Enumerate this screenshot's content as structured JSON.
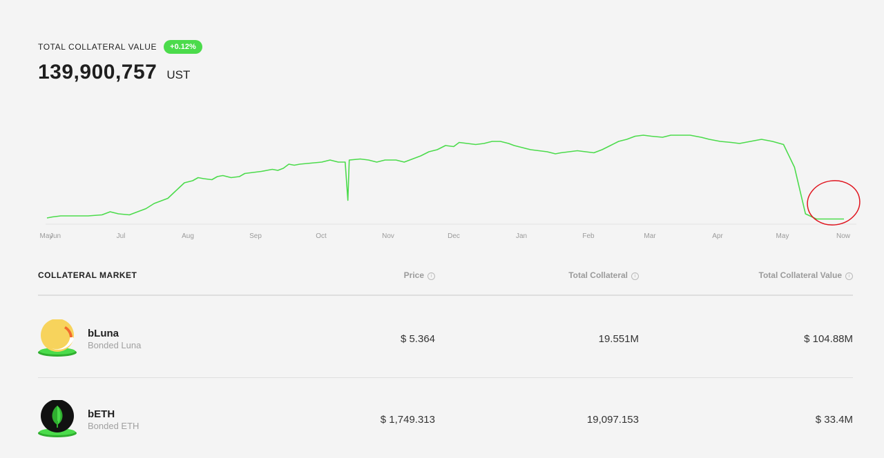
{
  "header": {
    "title": "TOTAL COLLATERAL VALUE",
    "change_badge": "+0.12%",
    "total_value": "139,900,757",
    "unit": "UST"
  },
  "colors": {
    "accent": "#4bdb4b",
    "line": "#4bdb4b",
    "annotation": "#e0141e"
  },
  "chart_data": {
    "type": "line",
    "x_ticks": [
      "May",
      "Jun",
      "Jul",
      "Aug",
      "Sep",
      "Oct",
      "Nov",
      "Dec",
      "Jan",
      "Feb",
      "Mar",
      "Apr",
      "May",
      "Now"
    ],
    "series": [
      {
        "values": [
          [
            0,
            6
          ],
          [
            0.2,
            7
          ],
          [
            0.5,
            8
          ],
          [
            0.8,
            8
          ],
          [
            1,
            8
          ],
          [
            1.5,
            8
          ],
          [
            2,
            9
          ],
          [
            2.3,
            12
          ],
          [
            2.6,
            10
          ],
          [
            3,
            9
          ],
          [
            3.3,
            12
          ],
          [
            3.6,
            15
          ],
          [
            3.9,
            20
          ],
          [
            4.1,
            22
          ],
          [
            4.4,
            25
          ],
          [
            4.6,
            30
          ],
          [
            4.8,
            35
          ],
          [
            5,
            40
          ],
          [
            5.3,
            42
          ],
          [
            5.5,
            45
          ],
          [
            5.7,
            44
          ],
          [
            6,
            43
          ],
          [
            6.2,
            46
          ],
          [
            6.4,
            47
          ],
          [
            6.7,
            45
          ],
          [
            7,
            46
          ],
          [
            7.2,
            49
          ],
          [
            7.5,
            50
          ],
          [
            7.8,
            51
          ],
          [
            8,
            52
          ],
          [
            8.2,
            53
          ],
          [
            8.4,
            52
          ],
          [
            8.6,
            54
          ],
          [
            8.8,
            58
          ],
          [
            9,
            57
          ],
          [
            9.2,
            58
          ],
          [
            9.6,
            59
          ],
          [
            10,
            60
          ],
          [
            10.3,
            62
          ],
          [
            10.6,
            60
          ],
          [
            10.85,
            60
          ],
          [
            10.95,
            23
          ],
          [
            11,
            62
          ],
          [
            11.4,
            63
          ],
          [
            11.7,
            62
          ],
          [
            12,
            60
          ],
          [
            12.3,
            62
          ],
          [
            12.7,
            62
          ],
          [
            13,
            60
          ],
          [
            13.3,
            63
          ],
          [
            13.6,
            66
          ],
          [
            13.9,
            70
          ],
          [
            14.2,
            72
          ],
          [
            14.5,
            76
          ],
          [
            14.8,
            75
          ],
          [
            15,
            79
          ],
          [
            15.3,
            78
          ],
          [
            15.6,
            77
          ],
          [
            15.9,
            78
          ],
          [
            16.2,
            80
          ],
          [
            16.5,
            80
          ],
          [
            16.8,
            78
          ],
          [
            17,
            76
          ],
          [
            17.3,
            74
          ],
          [
            17.6,
            72
          ],
          [
            17.9,
            71
          ],
          [
            18.2,
            70
          ],
          [
            18.5,
            68
          ],
          [
            18.7,
            69
          ],
          [
            19,
            70
          ],
          [
            19.3,
            71
          ],
          [
            19.6,
            70
          ],
          [
            19.9,
            69
          ],
          [
            20.2,
            72
          ],
          [
            20.5,
            76
          ],
          [
            20.8,
            80
          ],
          [
            21.1,
            82
          ],
          [
            21.4,
            85
          ],
          [
            21.7,
            86
          ],
          [
            22,
            85
          ],
          [
            22.4,
            84
          ],
          [
            22.7,
            86
          ],
          [
            23,
            86
          ],
          [
            23.4,
            86
          ],
          [
            23.8,
            84
          ],
          [
            24.1,
            82
          ],
          [
            24.5,
            80
          ],
          [
            24.9,
            79
          ],
          [
            25.2,
            78
          ],
          [
            25.6,
            80
          ],
          [
            26,
            82
          ],
          [
            26.4,
            80
          ],
          [
            26.8,
            77
          ],
          [
            27.2,
            55
          ],
          [
            27.6,
            10
          ],
          [
            28,
            5
          ],
          [
            28.4,
            5
          ],
          [
            28.8,
            5
          ],
          [
            29,
            5
          ]
        ]
      }
    ]
  },
  "table": {
    "title": "COLLATERAL MARKET",
    "headers": {
      "price": "Price",
      "total_collateral": "Total Collateral",
      "total_collateral_value": "Total Collateral Value"
    },
    "info_glyph": "i",
    "rows": [
      {
        "symbol": "bLuna",
        "name": "Bonded Luna",
        "icon": "bluna-token-icon",
        "price": "$ 5.364",
        "total_collateral": "19.551M",
        "total_value": "$ 104.88M"
      },
      {
        "symbol": "bETH",
        "name": "Bonded ETH",
        "icon": "beth-token-icon",
        "price": "$ 1,749.313",
        "total_collateral": "19,097.153",
        "total_value": "$ 33.4M"
      }
    ]
  }
}
